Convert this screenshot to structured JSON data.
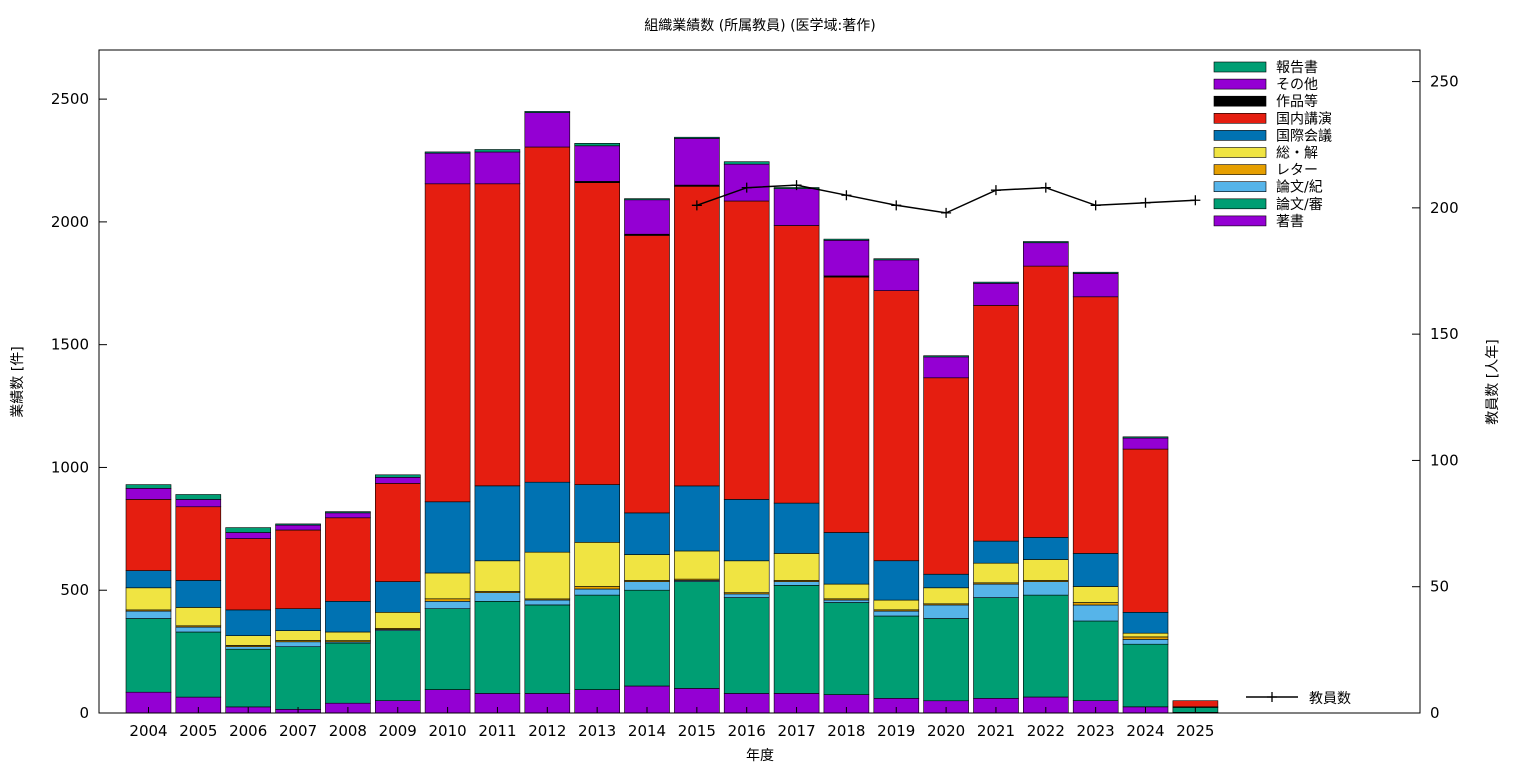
{
  "chart_data": {
    "type": "bar",
    "stacked": true,
    "title": "組織業績数 (所属教員) (医学域:著作)",
    "xlabel": "年度",
    "ylabel": "業績数 [件]",
    "y2label": "教員数 [人年]",
    "ylim": [
      0,
      2700
    ],
    "y2lim": [
      0,
      262.5
    ],
    "yticks": [
      0,
      500,
      1000,
      1500,
      2000,
      2500
    ],
    "y2ticks": [
      0,
      50,
      100,
      150,
      200,
      250
    ],
    "grid": false,
    "legend_position": "top-right",
    "categories": [
      "2004",
      "2005",
      "2006",
      "2007",
      "2008",
      "2009",
      "2010",
      "2011",
      "2012",
      "2013",
      "2014",
      "2015",
      "2016",
      "2017",
      "2018",
      "2019",
      "2020",
      "2021",
      "2022",
      "2023",
      "2024",
      "2025"
    ],
    "series": [
      {
        "name": "著書",
        "color": "#9400d3",
        "values": [
          85,
          65,
          25,
          15,
          40,
          50,
          95,
          80,
          80,
          95,
          110,
          100,
          80,
          80,
          75,
          60,
          50,
          60,
          65,
          50,
          25,
          3
        ]
      },
      {
        "name": "論文/審",
        "color": "#009e73",
        "values": [
          300,
          265,
          235,
          255,
          245,
          285,
          330,
          375,
          360,
          385,
          390,
          435,
          390,
          440,
          375,
          335,
          335,
          410,
          415,
          325,
          255,
          20
        ]
      },
      {
        "name": "論文/紀",
        "color": "#56b4e9",
        "values": [
          30,
          20,
          10,
          20,
          5,
          5,
          30,
          35,
          20,
          25,
          35,
          5,
          15,
          15,
          10,
          20,
          55,
          55,
          55,
          65,
          20,
          2
        ]
      },
      {
        "name": "レター",
        "color": "#e69f00",
        "values": [
          5,
          5,
          5,
          5,
          5,
          5,
          10,
          5,
          5,
          10,
          5,
          5,
          5,
          5,
          5,
          5,
          5,
          5,
          5,
          10,
          10,
          0
        ]
      },
      {
        "name": "総・解",
        "color": "#f0e442",
        "values": [
          90,
          75,
          40,
          40,
          35,
          65,
          105,
          125,
          190,
          180,
          105,
          115,
          130,
          110,
          60,
          40,
          65,
          80,
          85,
          65,
          15,
          0
        ]
      },
      {
        "name": "国際会議",
        "color": "#0072b2",
        "values": [
          70,
          110,
          105,
          90,
          125,
          125,
          290,
          305,
          285,
          235,
          170,
          265,
          250,
          205,
          210,
          160,
          55,
          90,
          90,
          135,
          85,
          0
        ]
      },
      {
        "name": "国内講演",
        "color": "#e51e10",
        "values": [
          290,
          300,
          290,
          320,
          340,
          400,
          1295,
          1230,
          1365,
          1230,
          1130,
          1220,
          1215,
          1130,
          1040,
          1100,
          800,
          960,
          1105,
          1045,
          665,
          25
        ]
      },
      {
        "name": "作品等",
        "color": "#000000",
        "values": [
          0,
          0,
          0,
          0,
          0,
          0,
          0,
          0,
          0,
          5,
          5,
          5,
          0,
          0,
          5,
          0,
          0,
          0,
          0,
          0,
          0,
          0
        ]
      },
      {
        "name": "その他",
        "color": "#9400d3",
        "values": [
          45,
          30,
          25,
          20,
          20,
          25,
          125,
          130,
          140,
          145,
          140,
          190,
          150,
          150,
          145,
          125,
          85,
          90,
          95,
          95,
          45,
          0
        ]
      },
      {
        "name": "報告書",
        "color": "#009e73",
        "values": [
          15,
          20,
          20,
          5,
          5,
          10,
          5,
          10,
          5,
          10,
          5,
          5,
          10,
          5,
          5,
          5,
          5,
          5,
          5,
          5,
          5,
          0
        ]
      }
    ],
    "line_series": {
      "name": "教員数",
      "axis": "y2",
      "x": [
        "2015",
        "2016",
        "2017",
        "2018",
        "2019",
        "2020",
        "2021",
        "2022",
        "2023",
        "2024",
        "2025"
      ],
      "values": [
        201,
        208,
        209,
        205,
        201,
        198,
        207,
        208,
        201,
        202,
        203
      ]
    }
  }
}
